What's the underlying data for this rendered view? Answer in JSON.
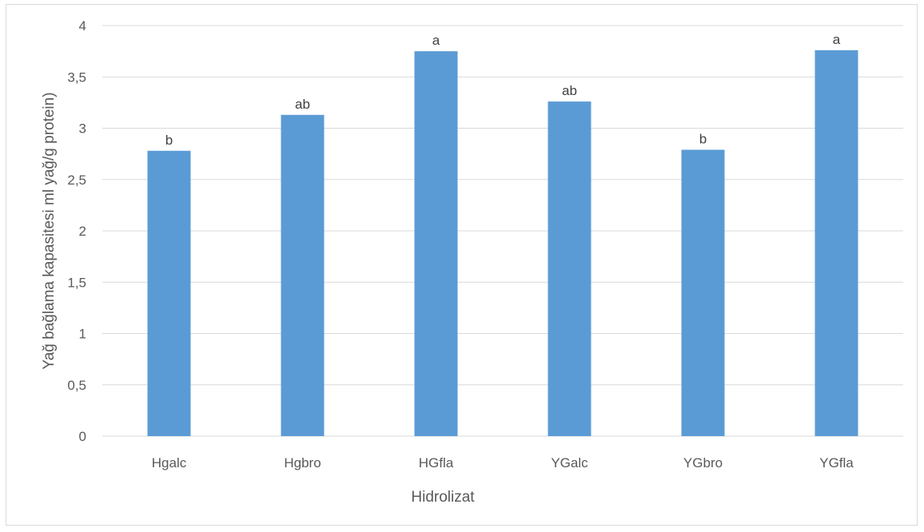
{
  "chart_data": {
    "type": "bar",
    "title": "",
    "xlabel": "Hidrolizat",
    "ylabel": "Yağ bağlama kapasitesi ml yağ/g protein)",
    "categories": [
      "Hgalc",
      "Hgbro",
      "HGfla",
      "YGalc",
      "YGbro",
      "YGfla"
    ],
    "values": [
      2.78,
      3.13,
      3.75,
      3.26,
      2.79,
      3.76
    ],
    "data_labels": [
      "b",
      "ab",
      "a",
      "ab",
      "b",
      "a"
    ],
    "ylim": [
      0,
      4
    ],
    "yticks": [
      0,
      0.5,
      1,
      1.5,
      2,
      2.5,
      3,
      3.5,
      4
    ],
    "ytick_labels": [
      "0",
      "0,5",
      "1",
      "1,5",
      "2",
      "2,5",
      "3",
      "3,5",
      "4"
    ],
    "grid": true,
    "legend": "none",
    "bar_color": "#5b9bd5",
    "grid_color": "#d9d9d9"
  }
}
